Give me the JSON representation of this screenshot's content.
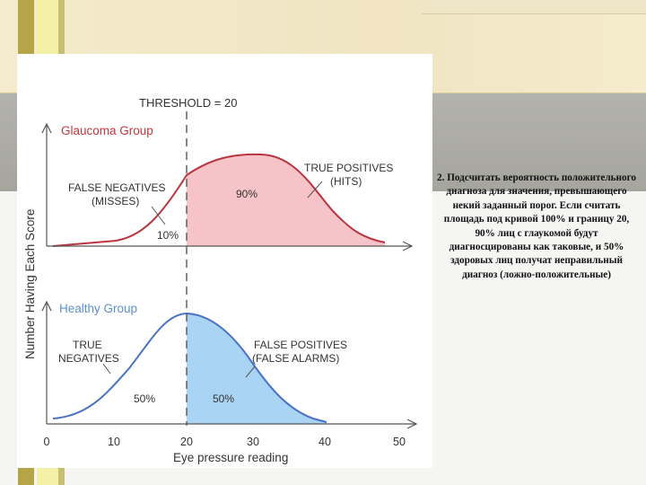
{
  "figure": {
    "threshold_label": "THRESHOLD = 20",
    "y_axis_label": "Number Having Each Score",
    "x_axis_label": "Eye pressure reading",
    "glaucoma": {
      "group_label": "Glaucoma Group",
      "true_positives_line1": "TRUE POSITIVES",
      "true_positives_line2": "(HITS)",
      "false_negatives_line1": "FALSE NEGATIVES",
      "false_negatives_line2": "(MISSES)",
      "pct_hits": "90%",
      "pct_misses": "10%"
    },
    "healthy": {
      "group_label": "Healthy Group",
      "true_negatives_line1": "TRUE",
      "true_negatives_line2": "NEGATIVES",
      "false_positives_line1": "FALSE POSITIVES",
      "false_positives_line2": "(FALSE ALARMS)",
      "pct_true_neg": "50%",
      "pct_false_pos": "50%"
    },
    "ticks": [
      "0",
      "10",
      "20",
      "30",
      "40",
      "50"
    ],
    "colors": {
      "glaucoma_curve": "#b9343f",
      "glaucoma_fill": "#f6c4c8",
      "healthy_curve": "#4a72c4",
      "healthy_fill": "#a9d4f3",
      "label_red": "#c3363f",
      "label_blue": "#5b8fd0"
    }
  },
  "caption": "2. Подсчитать вероятность положительного диагноза  для значения, превышающего некий заданный порог. Если считать площадь под кривой 100% и границу 20, 90% лиц с глаукомой будут диагносцированы как таковые, и 50% здоровых лиц получат неправильный диагноз (ложно-положительные)"
}
